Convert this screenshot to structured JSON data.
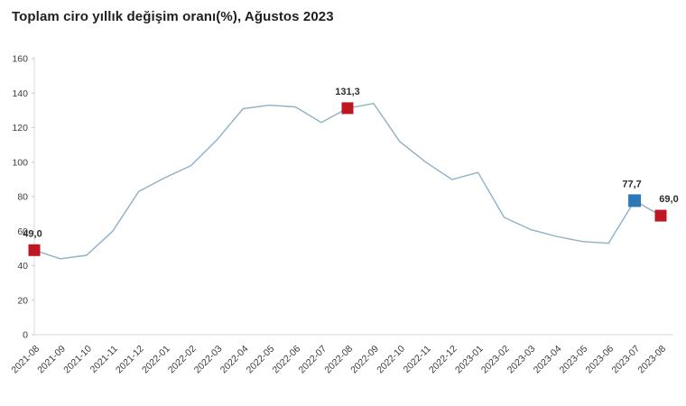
{
  "chart_data": {
    "type": "line",
    "title": "Toplam ciro yıllık değişim oranı(%), Ağustos 2023",
    "categories": [
      "2021-08",
      "2021-09",
      "2021-10",
      "2021-11",
      "2021-12",
      "2022-01",
      "2022-02",
      "2022-03",
      "2022-04",
      "2022-05",
      "2022-06",
      "2022-07",
      "2022-08",
      "2022-09",
      "2022-10",
      "2022-11",
      "2022-12",
      "2023-01",
      "2023-02",
      "2023-03",
      "2023-04",
      "2023-05",
      "2023-06",
      "2023-07",
      "2023-08"
    ],
    "values": [
      49.0,
      44,
      46,
      60,
      83,
      91,
      98,
      113,
      131,
      133,
      132,
      123,
      131.3,
      134,
      112,
      100,
      90,
      94,
      68,
      61,
      57,
      54,
      53,
      77.7,
      69.0
    ],
    "ylim": [
      0,
      160
    ],
    "yticks": [
      0,
      20,
      40,
      60,
      80,
      100,
      120,
      140,
      160
    ],
    "xlabel": "",
    "ylabel": "",
    "grid": false,
    "legend": "none",
    "line_color": "#8fb0c6",
    "axis_color": "#d9d9d9",
    "tick_color": "#c9c9c9",
    "text_color": "#3b3b3b",
    "label_color": "#2e2e2e",
    "markers": [
      {
        "category": "2021-08",
        "index": 0,
        "value": 49.0,
        "label": "49,0",
        "color": "#bf1722"
      },
      {
        "category": "2022-08",
        "index": 12,
        "value": 131.3,
        "label": "131,3",
        "color": "#bf1722"
      },
      {
        "category": "2023-07",
        "index": 23,
        "value": 77.7,
        "label": "77,7",
        "color": "#2e78b8"
      },
      {
        "category": "2023-08",
        "index": 24,
        "value": 69.0,
        "label": "69,0",
        "color": "#bf1722"
      }
    ]
  }
}
